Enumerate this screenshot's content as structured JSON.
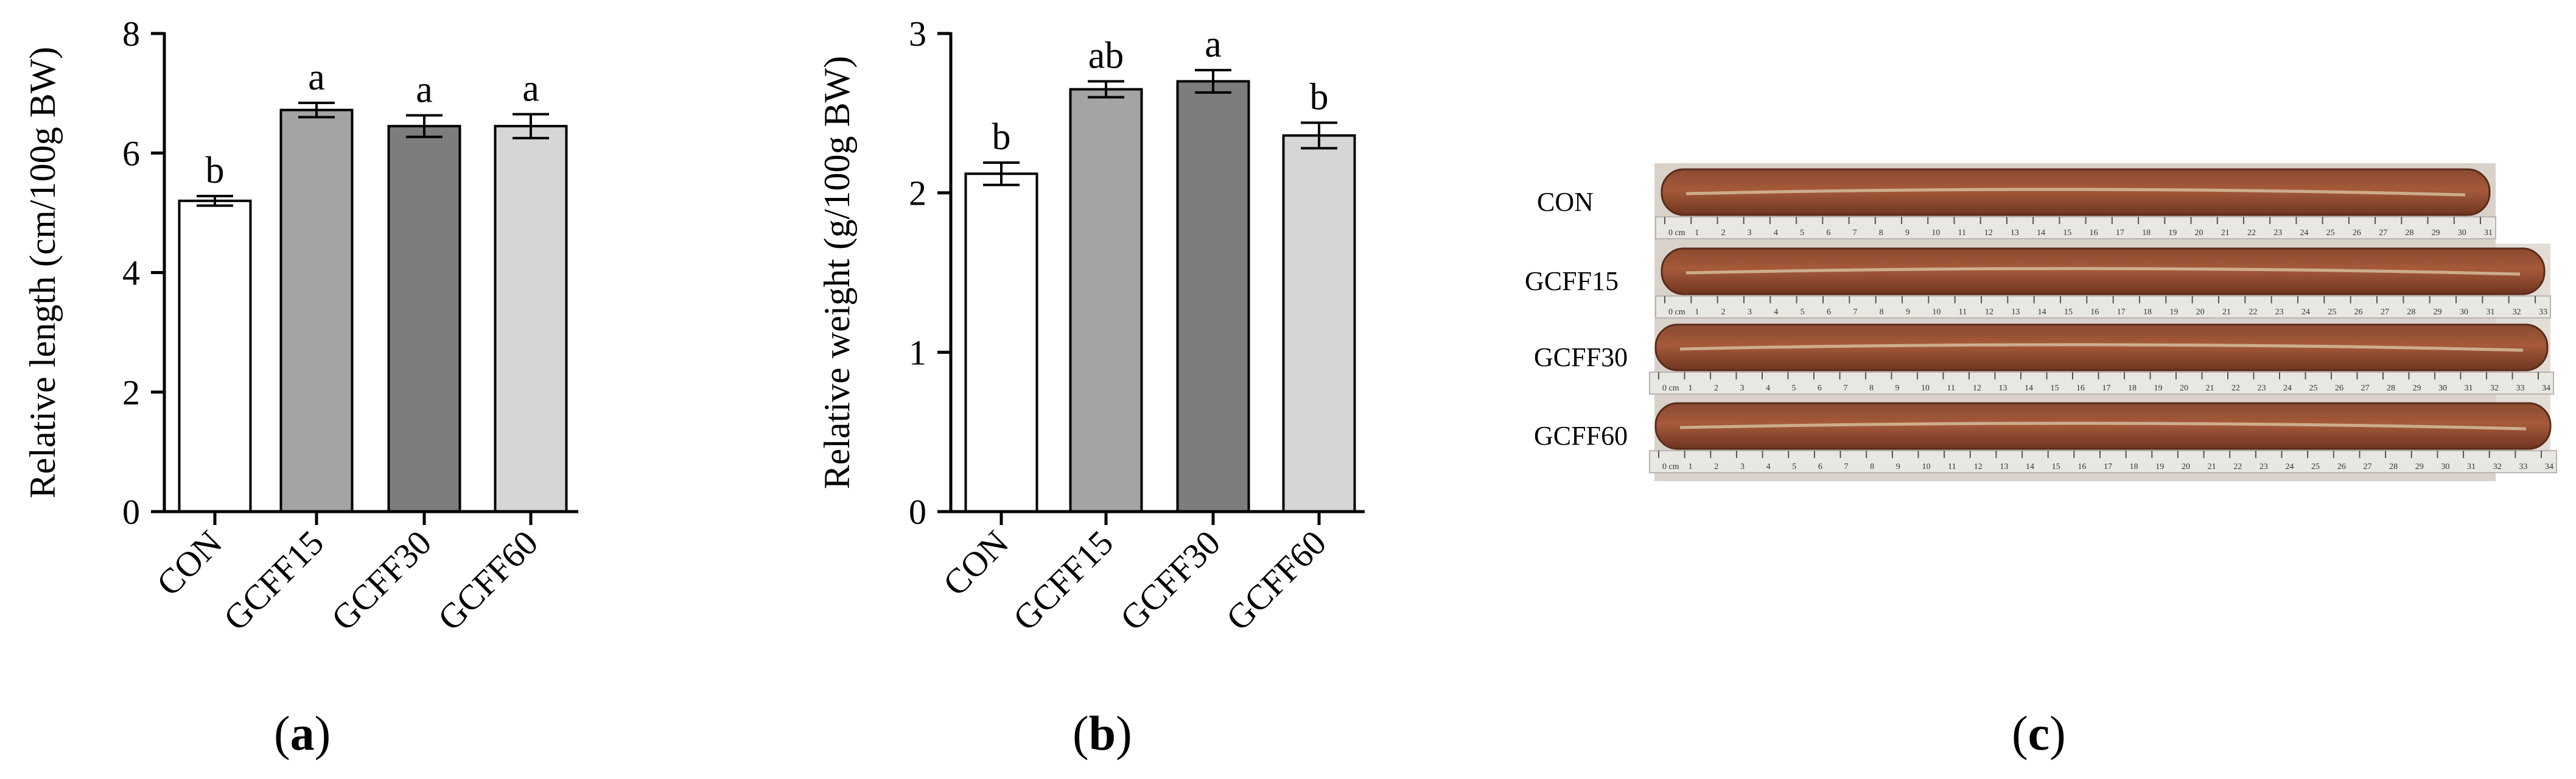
{
  "chart_data": [
    {
      "type": "bar",
      "panel": "a",
      "title": "",
      "xlabel": "",
      "ylabel": "Relative length (cm/100g BW)",
      "categories": [
        "CON",
        "GCFF15",
        "GCFF30",
        "GCFF60"
      ],
      "values": [
        5.2,
        6.72,
        6.45,
        6.45
      ],
      "errors": [
        0.08,
        0.12,
        0.18,
        0.2
      ],
      "significance": [
        "b",
        "a",
        "a",
        "a"
      ],
      "bar_colors": [
        "#ffffff",
        "#a4a4a4",
        "#7d7d7d",
        "#d6d6d6"
      ],
      "ylim": [
        0,
        8
      ],
      "yticks": [
        0,
        2,
        4,
        6,
        8
      ],
      "grid": false
    },
    {
      "type": "bar",
      "panel": "b",
      "title": "",
      "xlabel": "",
      "ylabel": "Relative weight (g/100g BW)",
      "categories": [
        "CON",
        "GCFF15",
        "GCFF30",
        "GCFF60"
      ],
      "values": [
        2.12,
        2.65,
        2.7,
        2.36
      ],
      "errors": [
        0.07,
        0.05,
        0.07,
        0.08
      ],
      "significance": [
        "b",
        "ab",
        "a",
        "b"
      ],
      "bar_colors": [
        "#ffffff",
        "#a4a4a4",
        "#7d7d7d",
        "#d6d6d6"
      ],
      "ylim": [
        0,
        3
      ],
      "yticks": [
        0,
        1,
        2,
        3
      ],
      "grid": false
    }
  ],
  "photo": {
    "panel": "c",
    "rows": [
      "CON",
      "GCFF15",
      "GCFF30",
      "GCFF60"
    ],
    "ruler_ticks": [
      "0 cm",
      "1",
      "2",
      "3",
      "4",
      "5",
      "6",
      "7",
      "8",
      "9",
      "10",
      "11",
      "12",
      "13",
      "14",
      "15",
      "16",
      "17",
      "18",
      "19",
      "20",
      "21",
      "22",
      "23",
      "24",
      "25",
      "26",
      "27",
      "28",
      "29",
      "30",
      "31",
      "32",
      "33",
      "34"
    ]
  },
  "panel_labels": {
    "a": "a",
    "b": "b",
    "c": "c"
  }
}
